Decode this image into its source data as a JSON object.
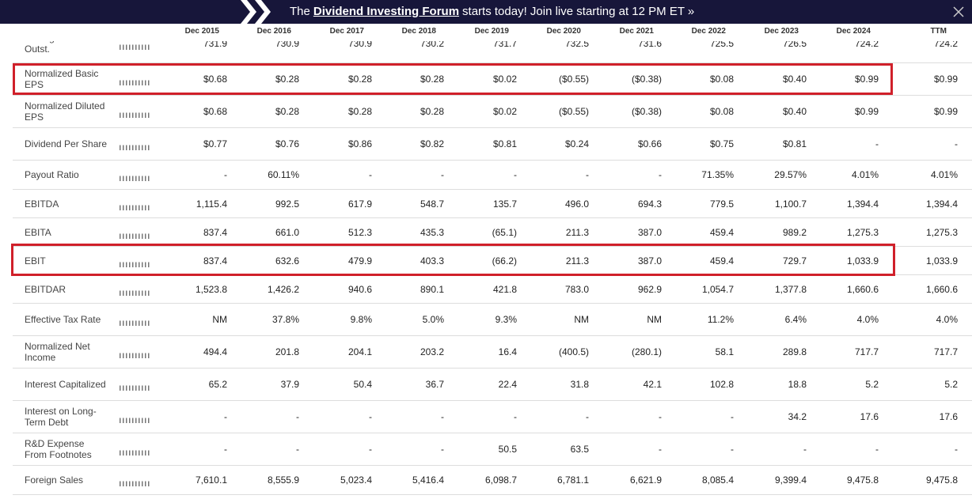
{
  "banner": {
    "prefix": "The",
    "link": "Dividend Investing Forum",
    "suffix": "starts today! Join live starting at 12 PM ET »"
  },
  "table": {
    "columns": [
      "Dec 2015",
      "Dec 2016",
      "Dec 2017",
      "Dec 2018",
      "Dec 2019",
      "Dec 2020",
      "Dec 2021",
      "Dec 2022",
      "Dec 2023",
      "Dec 2024",
      "TTM"
    ],
    "rows": [
      {
        "label": "Average Shares Outst.",
        "values": [
          "731.9",
          "730.9",
          "730.9",
          "730.2",
          "731.7",
          "732.5",
          "731.6",
          "725.5",
          "726.5",
          "724.2",
          "724.2"
        ]
      },
      {
        "label": "Normalized Basic EPS",
        "values": [
          "$0.68",
          "$0.28",
          "$0.28",
          "$0.28",
          "$0.02",
          "($0.55)",
          "($0.38)",
          "$0.08",
          "$0.40",
          "$0.99",
          "$0.99"
        ]
      },
      {
        "label": "Normalized Diluted EPS",
        "values": [
          "$0.68",
          "$0.28",
          "$0.28",
          "$0.28",
          "$0.02",
          "($0.55)",
          "($0.38)",
          "$0.08",
          "$0.40",
          "$0.99",
          "$0.99"
        ]
      },
      {
        "label": "Dividend Per Share",
        "values": [
          "$0.77",
          "$0.76",
          "$0.86",
          "$0.82",
          "$0.81",
          "$0.24",
          "$0.66",
          "$0.75",
          "$0.81",
          "-",
          "-"
        ]
      },
      {
        "label": "Payout Ratio",
        "values": [
          "-",
          "60.11%",
          "-",
          "-",
          "-",
          "-",
          "-",
          "71.35%",
          "29.57%",
          "4.01%",
          "4.01%"
        ]
      },
      {
        "label": "EBITDA",
        "values": [
          "1,115.4",
          "992.5",
          "617.9",
          "548.7",
          "135.7",
          "496.0",
          "694.3",
          "779.5",
          "1,100.7",
          "1,394.4",
          "1,394.4"
        ]
      },
      {
        "label": "EBITA",
        "values": [
          "837.4",
          "661.0",
          "512.3",
          "435.3",
          "(65.1)",
          "211.3",
          "387.0",
          "459.4",
          "989.2",
          "1,275.3",
          "1,275.3"
        ]
      },
      {
        "label": "EBIT",
        "values": [
          "837.4",
          "632.6",
          "479.9",
          "403.3",
          "(66.2)",
          "211.3",
          "387.0",
          "459.4",
          "729.7",
          "1,033.9",
          "1,033.9"
        ]
      },
      {
        "label": "EBITDAR",
        "values": [
          "1,523.8",
          "1,426.2",
          "940.6",
          "890.1",
          "421.8",
          "783.0",
          "962.9",
          "1,054.7",
          "1,377.8",
          "1,660.6",
          "1,660.6"
        ]
      },
      {
        "label": "Effective Tax Rate",
        "values": [
          "NM",
          "37.8%",
          "9.8%",
          "5.0%",
          "9.3%",
          "NM",
          "NM",
          "11.2%",
          "6.4%",
          "4.0%",
          "4.0%"
        ]
      },
      {
        "label": "Normalized Net Income",
        "values": [
          "494.4",
          "201.8",
          "204.1",
          "203.2",
          "16.4",
          "(400.5)",
          "(280.1)",
          "58.1",
          "289.8",
          "717.7",
          "717.7"
        ]
      },
      {
        "label": "Interest Capitalized",
        "values": [
          "65.2",
          "37.9",
          "50.4",
          "36.7",
          "22.4",
          "31.8",
          "42.1",
          "102.8",
          "18.8",
          "5.2",
          "5.2"
        ]
      },
      {
        "label": "Interest on Long-Term Debt",
        "values": [
          "-",
          "-",
          "-",
          "-",
          "-",
          "-",
          "-",
          "-",
          "34.2",
          "17.6",
          "17.6"
        ]
      },
      {
        "label": "R&D Expense From Footnotes",
        "values": [
          "-",
          "-",
          "-",
          "-",
          "50.5",
          "63.5",
          "-",
          "-",
          "-",
          "-",
          "-"
        ]
      },
      {
        "label": "Foreign Sales",
        "values": [
          "7,610.1",
          "8,555.9",
          "5,023.4",
          "5,416.4",
          "6,098.7",
          "6,781.1",
          "6,621.9",
          "8,085.4",
          "9,399.4",
          "9,475.8",
          "9,475.8"
        ]
      }
    ]
  }
}
